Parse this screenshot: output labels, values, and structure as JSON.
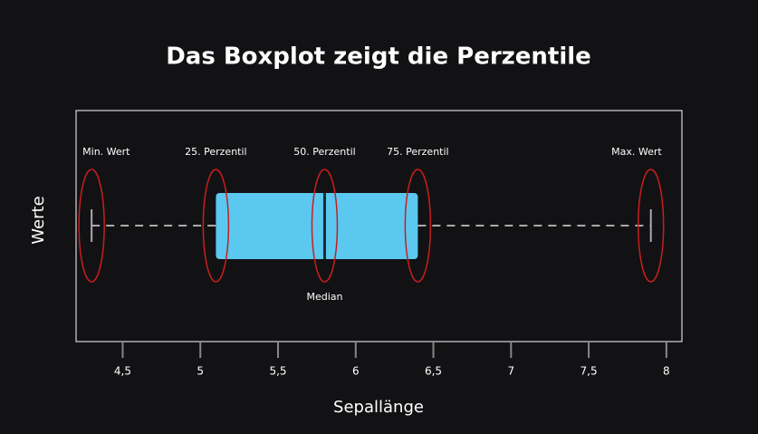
{
  "chart_data": {
    "type": "box",
    "title": "Das Boxplot zeigt die Perzentile",
    "xlabel": "Sepallänge",
    "ylabel": "Werte",
    "xlim": [
      4.2,
      8.1
    ],
    "xticks": [
      {
        "value": 4.5,
        "label": "4,5"
      },
      5,
      {
        "value": 5.5,
        "label": "5,5"
      },
      6,
      {
        "value": 6.5,
        "label": "6,5"
      },
      7,
      {
        "value": 7.5,
        "label": "7,5"
      },
      8
    ],
    "box": {
      "min": 4.3,
      "q1": 5.1,
      "median": 5.8,
      "q3": 6.4,
      "max": 7.9
    },
    "color": "#5bc8f0",
    "annotations": {
      "min": "Min. Wert",
      "q1": "25. Perzentil",
      "median": "50. Perzentil",
      "q3": "75. Perzentil",
      "max": "Max. Wert",
      "median_below": "Median"
    }
  }
}
